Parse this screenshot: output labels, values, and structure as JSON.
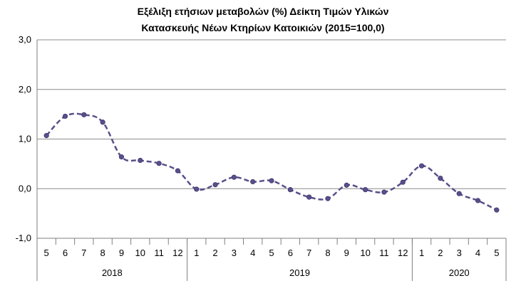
{
  "chart_data": {
    "type": "line",
    "title_line1": "Εξέλιξη ετήσιων μεταβολών (%) Δείκτη Τιμών Υλικών",
    "title_line2": "Κατασκευής Νέων Κτηρίων Κατοικιών (2015=100,0)",
    "ylim": [
      -1.0,
      3.0
    ],
    "yticks": [
      "3,0",
      "2,0",
      "1,0",
      "0,0",
      "-1,0"
    ],
    "grid": true,
    "categories": [
      "5",
      "6",
      "7",
      "8",
      "9",
      "10",
      "11",
      "12",
      "1",
      "2",
      "3",
      "4",
      "5",
      "6",
      "7",
      "8",
      "9",
      "10",
      "11",
      "12",
      "1",
      "2",
      "3",
      "4",
      "5"
    ],
    "year_groups": [
      {
        "label": "2018",
        "count": 8
      },
      {
        "label": "2019",
        "count": 12
      },
      {
        "label": "2020",
        "count": 5
      }
    ],
    "series": [
      {
        "values": [
          1.07,
          1.46,
          1.49,
          1.34,
          0.64,
          0.57,
          0.51,
          0.36,
          -0.01,
          0.08,
          0.23,
          0.14,
          0.16,
          -0.02,
          -0.17,
          -0.2,
          0.07,
          -0.02,
          -0.07,
          0.13,
          0.46,
          0.21,
          -0.1,
          -0.24,
          -0.43
        ],
        "color": "#5b4f8a"
      }
    ]
  }
}
